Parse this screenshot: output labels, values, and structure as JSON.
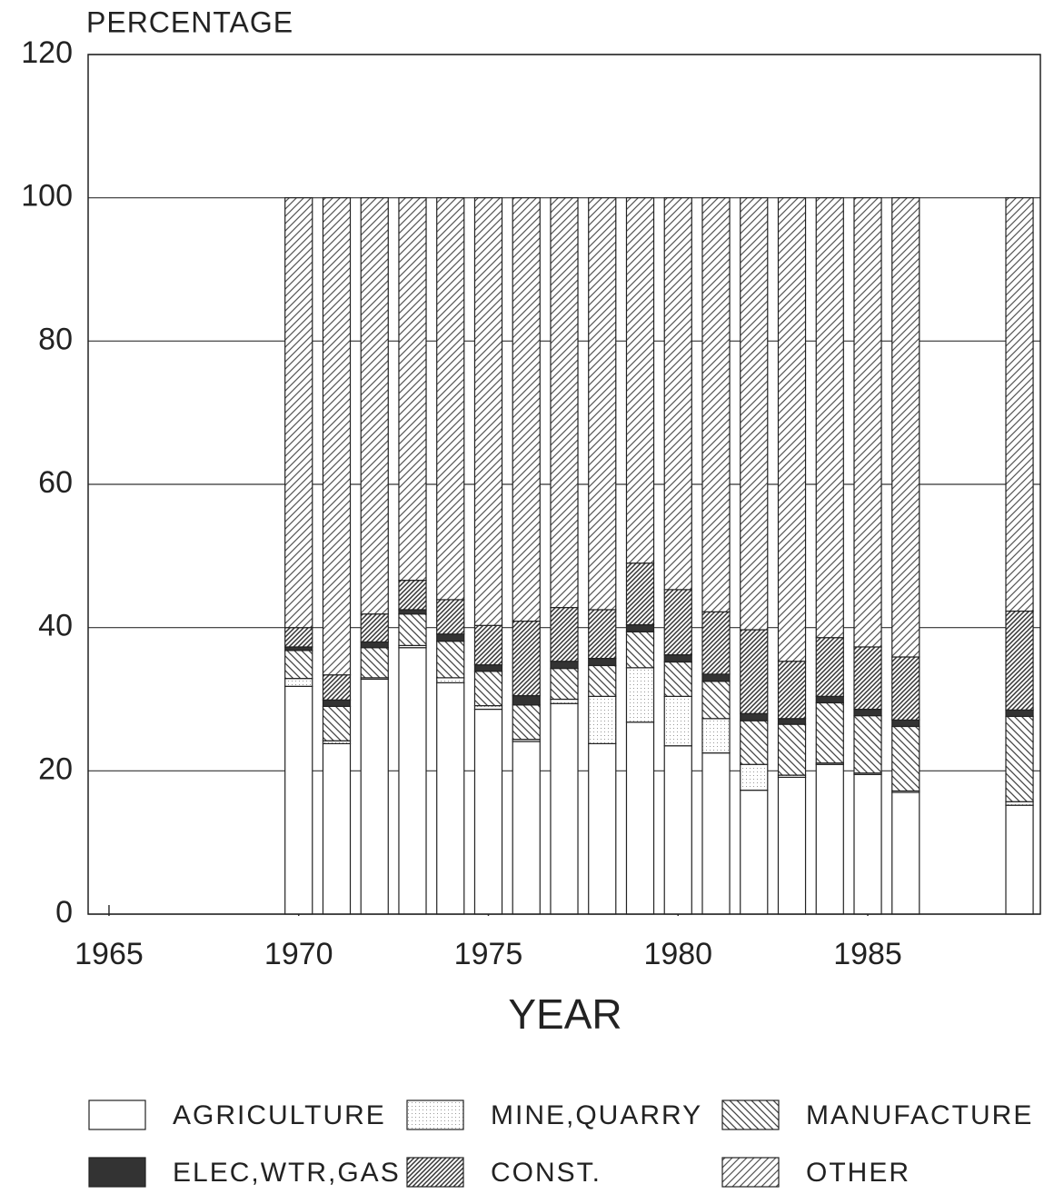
{
  "chart_data": {
    "type": "stacked-bar",
    "title": "PERCENTAGE",
    "x_label": "YEAR",
    "x": [
      1970,
      1971,
      1972,
      1973,
      1974,
      1975,
      1976,
      1977,
      1978,
      1979,
      1980,
      1981,
      1982,
      1983,
      1984,
      1985,
      1986,
      1989
    ],
    "xlim": [
      1964.45,
      1989.55
    ],
    "xticks": [
      1965,
      1970,
      1975,
      1980,
      1985
    ],
    "ylim": [
      0,
      120
    ],
    "yticks": [
      0,
      20,
      40,
      60,
      80,
      100,
      120
    ],
    "grid": true,
    "series": [
      {
        "name": "AGRICULTURE",
        "color": "#ffffff",
        "pattern": "none",
        "values": [
          31.8,
          23.8,
          32.8,
          37.2,
          32.3,
          28.6,
          24.1,
          29.4,
          23.8,
          26.8,
          23.5,
          22.5,
          17.3,
          19.1,
          20.9,
          19.5,
          17.0,
          15.2
        ]
      },
      {
        "name": "MINE,QUARRY",
        "color": "#999999",
        "pattern": "dots",
        "values": [
          1.1,
          0.4,
          0.2,
          0.3,
          0.7,
          0.5,
          0.3,
          0.6,
          6.6,
          7.6,
          6.9,
          4.8,
          3.6,
          0.3,
          0.2,
          0.2,
          0.2,
          0.5
        ]
      },
      {
        "name": "MANUFACTURE",
        "color": "#444444",
        "pattern": "back-diagonal",
        "values": [
          3.9,
          4.8,
          4.2,
          4.4,
          5.1,
          4.8,
          4.8,
          4.3,
          4.3,
          5.0,
          4.8,
          5.2,
          6.1,
          7.1,
          8.4,
          8.0,
          9.0,
          11.9
        ]
      },
      {
        "name": "ELEC,WTR,GAS",
        "color": "#333333",
        "pattern": "solid",
        "values": [
          0.5,
          0.9,
          0.8,
          0.6,
          1.0,
          0.9,
          1.3,
          1.0,
          1.0,
          1.0,
          1.0,
          1.0,
          1.0,
          0.8,
          0.9,
          0.9,
          0.9,
          0.9
        ]
      },
      {
        "name": "CONST.",
        "color": "#333333",
        "pattern": "diagonal-dense",
        "values": [
          2.7,
          3.5,
          3.9,
          4.1,
          4.8,
          5.5,
          10.4,
          7.5,
          6.8,
          8.6,
          9.1,
          8.7,
          11.7,
          8.0,
          8.2,
          8.7,
          8.8,
          13.8
        ]
      },
      {
        "name": "OTHER",
        "color": "#555555",
        "pattern": "diagonal",
        "values": [
          60.0,
          66.6,
          58.1,
          53.4,
          56.1,
          59.7,
          59.1,
          57.2,
          57.5,
          51.0,
          54.7,
          57.8,
          60.3,
          64.7,
          61.4,
          62.7,
          64.1,
          57.7
        ]
      }
    ]
  }
}
